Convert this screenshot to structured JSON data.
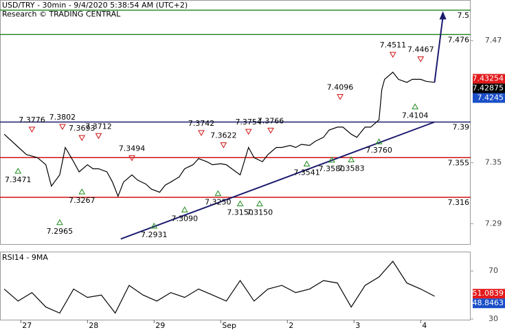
{
  "chart_data": [
    {
      "type": "line",
      "title": "USD/TRY - 30min - 9/4/2020 5:38:54 AM (UTC+2)",
      "subtitle": "Research © TRADING CENTRAL",
      "x": [
        -6,
        -2,
        2,
        6,
        9,
        11,
        14,
        16,
        19,
        21,
        24,
        26,
        28,
        31,
        33,
        35,
        37,
        40,
        42,
        45,
        47,
        50,
        52,
        54,
        57,
        59,
        62,
        64,
        67,
        69,
        72,
        74,
        77,
        79,
        82,
        84,
        87,
        89,
        92,
        94,
        97,
        99,
        101,
        104,
        106,
        109,
        111,
        114,
        116,
        119,
        121,
        124,
        126,
        129,
        130,
        131,
        134,
        136,
        139,
        141,
        144,
        146,
        149
      ],
      "series": [
        {
          "color": "#000000",
          "values": [
            7.378,
            7.368,
            7.358,
            7.355,
            7.348,
            7.327,
            7.338,
            7.365,
            7.351,
            7.341,
            7.348,
            7.344,
            7.344,
            7.341,
            7.331,
            7.317,
            7.331,
            7.338,
            7.333,
            7.329,
            7.324,
            7.321,
            7.328,
            7.331,
            7.336,
            7.344,
            7.348,
            7.354,
            7.351,
            7.348,
            7.349,
            7.348,
            7.342,
            7.338,
            7.365,
            7.355,
            7.351,
            7.358,
            7.365,
            7.365,
            7.367,
            7.365,
            7.368,
            7.367,
            7.371,
            7.375,
            7.382,
            7.385,
            7.385,
            7.378,
            7.375,
            7.385,
            7.385,
            7.392,
            7.422,
            7.432,
            7.439,
            7.432,
            7.429,
            7.432,
            7.432,
            7.43,
            7.429
          ]
        }
      ],
      "xlim": [
        -7.5,
        162
      ],
      "ylim": [
        7.27,
        7.51
      ],
      "yticks": [
        7.29,
        7.35,
        7.47
      ],
      "levels": [
        {
          "value": 7.5,
          "color": "#2e8b2e"
        },
        {
          "value": 7.476,
          "color": "#2e8b2e"
        },
        {
          "value": 7.39,
          "color": "#1a1a6e"
        },
        {
          "value": 7.355,
          "color": "#d01010"
        },
        {
          "value": 7.316,
          "color": "#d01010"
        }
      ],
      "trendline": {
        "x": [
          36,
          149
        ],
        "values": [
          7.275,
          7.39
        ],
        "color": "#1a1a6e"
      },
      "target_arrow": {
        "x": [
          149,
          152
        ],
        "values": [
          7.429,
          7.499
        ],
        "color": "#1a1a6e"
      },
      "highs": {
        "color": "#d01010",
        "x": [
          4,
          15,
          22,
          28,
          40,
          65,
          73,
          82,
          90,
          115,
          134,
          144
        ],
        "values": [
          7.3776,
          7.3802,
          7.3693,
          7.3712,
          7.3494,
          7.3742,
          7.3622,
          7.3754,
          7.3766,
          7.4096,
          7.4511,
          7.4467
        ],
        "value_labels": [
          "7.3776",
          "7.3802",
          "7.3693",
          "7.3712",
          "7.3494",
          "7.3742",
          "7.3622",
          "7.3754",
          "7.3766",
          "7.4096",
          "7.4511",
          "7.4467"
        ]
      },
      "lows": {
        "color": "#1a8a1a",
        "x": [
          -1,
          22,
          14,
          48,
          59,
          71,
          79,
          86,
          103,
          112,
          119,
          129,
          142
        ],
        "values": [
          7.3471,
          7.3267,
          7.2965,
          7.2931,
          7.309,
          7.325,
          7.315,
          7.315,
          7.3541,
          7.358,
          7.3583,
          7.376,
          7.4104
        ],
        "value_labels": [
          "7.3471",
          "7.3267",
          "7.2965",
          "7.2931",
          "7.3090",
          "7.3250",
          "7.3150",
          "7.3150",
          "7.3541",
          "7.3580",
          "7.3583",
          "7.3760",
          "7.4104"
        ]
      },
      "price_tags": [
        {
          "value": 7.43254,
          "color": "#e31a1c"
        },
        {
          "value": 7.42875,
          "color": "#000000"
        },
        {
          "value": 7.4245,
          "color": "#1a4ec8"
        }
      ]
    },
    {
      "type": "line",
      "title": "RSI14 - 9MA",
      "x": [
        -6,
        -1,
        4,
        9,
        14,
        19,
        24,
        29,
        34,
        39,
        44,
        49,
        54,
        59,
        64,
        69,
        74,
        79,
        84,
        89,
        94,
        99,
        104,
        109,
        114,
        119,
        124,
        129,
        134,
        139,
        144,
        149
      ],
      "series": [
        {
          "color": "#000000",
          "values": [
            55,
            45,
            52,
            40,
            35,
            55,
            48,
            50,
            35,
            58,
            50,
            45,
            52,
            48,
            55,
            50,
            45,
            62,
            45,
            55,
            58,
            52,
            55,
            62,
            60,
            40,
            58,
            65,
            78,
            60,
            55,
            49
          ]
        }
      ],
      "xlim": [
        -7.5,
        162
      ],
      "ylim": [
        29.5,
        85.5
      ],
      "yticks": [
        30,
        70
      ],
      "xticks": [
        {
          "value": 0,
          "label": "27"
        },
        {
          "value": 24,
          "label": "28"
        },
        {
          "value": 48,
          "label": "29"
        },
        {
          "value": 72,
          "label": "Sep"
        },
        {
          "value": 96,
          "label": "2"
        },
        {
          "value": 120,
          "label": "3"
        },
        {
          "value": 144,
          "label": "4"
        }
      ],
      "price_tags": [
        {
          "value": 51.0839,
          "color": "#e31a1c"
        },
        {
          "value": 48.8463,
          "color": "#1a4ec8"
        }
      ]
    }
  ]
}
